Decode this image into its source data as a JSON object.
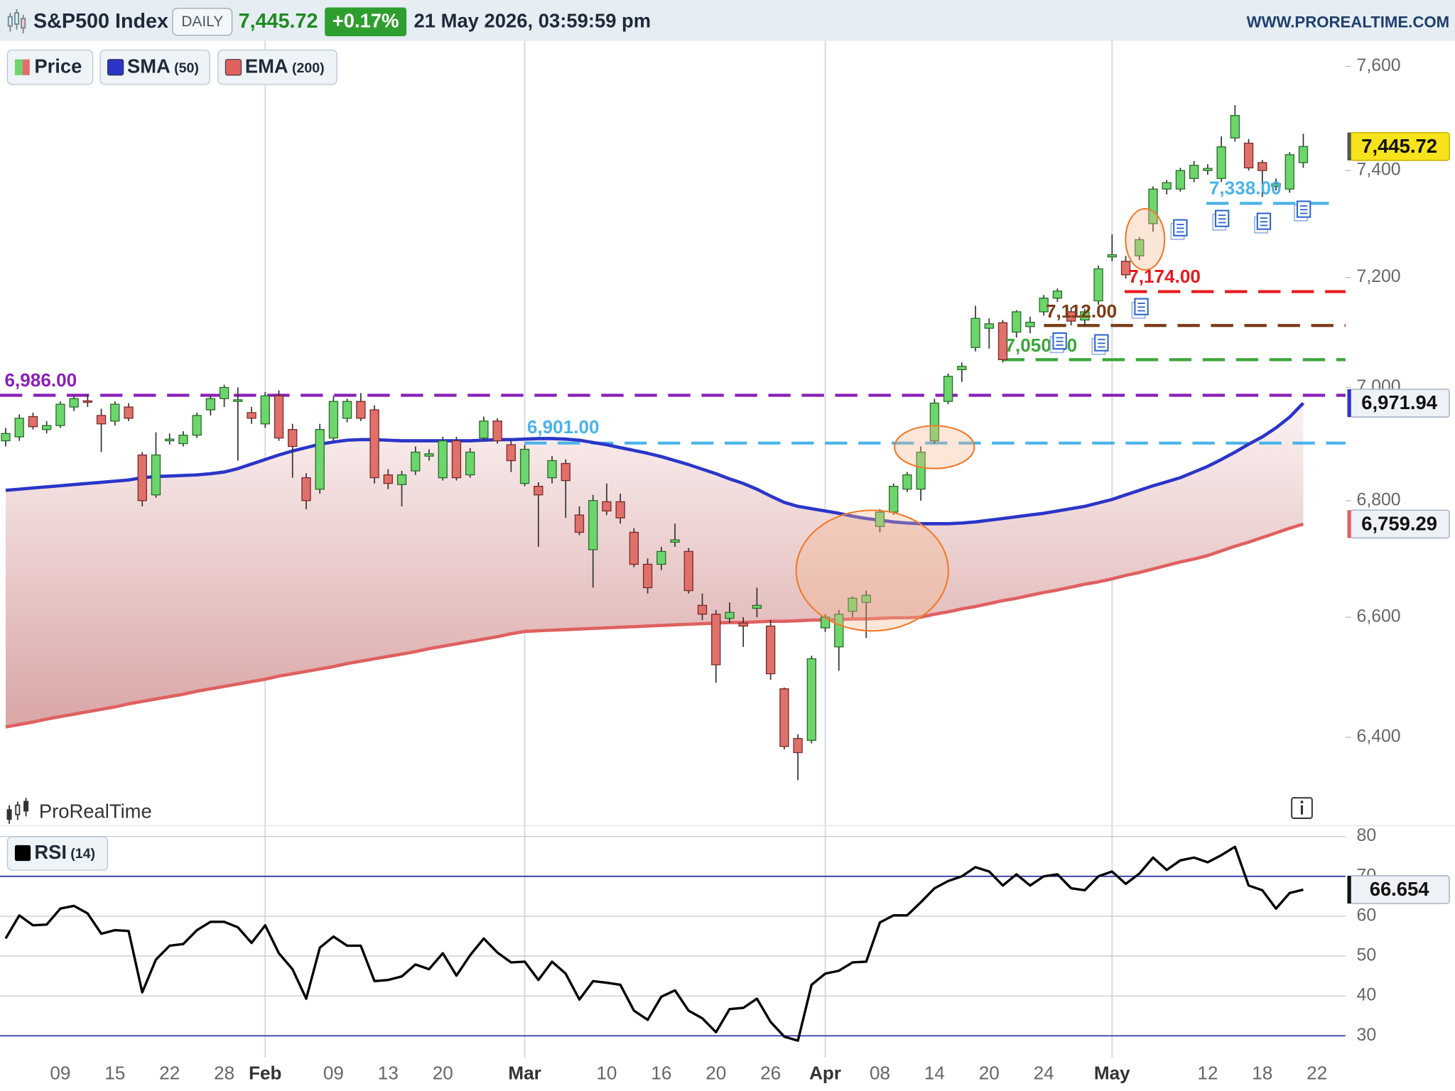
{
  "chart_data": {
    "type": "candlestick",
    "title": "S&P500 Index",
    "timeframe": "DAILY",
    "last_price_label": "7,445.72",
    "change_label": "+0.17%",
    "timestamp": "21 May 2026, 03:59:59 pm",
    "source": "WWW.PROREALTIME.COM",
    "brand": "ProRealTime",
    "legend": [
      {
        "name": "Price"
      },
      {
        "name": "SMA",
        "param": "(50)"
      },
      {
        "name": "EMA",
        "param": "(200)"
      }
    ],
    "log_scale": true,
    "ylim": [
      6300,
      7650
    ],
    "yticks": [
      {
        "value": 6400,
        "label": "6,400"
      },
      {
        "value": 6600,
        "label": "6,600"
      },
      {
        "value": 6800,
        "label": "6,800"
      },
      {
        "value": 7000,
        "label": "7,000"
      },
      {
        "value": 7200,
        "label": "7,200"
      },
      {
        "value": 7400,
        "label": "7,400"
      },
      {
        "value": 7600,
        "label": "7,600"
      }
    ],
    "categories": [
      null,
      null,
      null,
      null,
      "09",
      null,
      null,
      null,
      "15",
      null,
      null,
      null,
      "22",
      null,
      null,
      null,
      "28",
      null,
      null,
      "Feb",
      null,
      null,
      null,
      null,
      "09",
      null,
      null,
      null,
      "13",
      null,
      null,
      null,
      "20",
      null,
      null,
      null,
      null,
      null,
      "Mar",
      null,
      null,
      null,
      null,
      null,
      "10",
      null,
      null,
      null,
      "16",
      null,
      null,
      null,
      "20",
      null,
      null,
      null,
      "26",
      null,
      null,
      null,
      "Apr",
      null,
      null,
      null,
      "08",
      null,
      null,
      null,
      "14",
      null,
      null,
      null,
      "20",
      null,
      null,
      null,
      "24",
      null,
      null,
      null,
      null,
      "May",
      null,
      null,
      null,
      null,
      null,
      null,
      "12",
      null,
      null,
      null,
      "18",
      null,
      null,
      null,
      "22"
    ],
    "up_color": "#6cd66c",
    "down_color": "#e0706a",
    "open": [
      6905,
      6912,
      6948,
      6925,
      6932,
      6965,
      6976,
      6950,
      6940,
      6965,
      6880,
      6810,
      6905,
      6900,
      6915,
      6960,
      6980,
      6975,
      6955,
      6935,
      6985,
      6925,
      6840,
      6820,
      6910,
      6945,
      6975,
      6960,
      6845,
      6828,
      6852,
      6878,
      6840,
      6905,
      6845,
      6910,
      6940,
      6898,
      6830,
      6825,
      6840,
      6865,
      6775,
      6715,
      6798,
      6798,
      6745,
      6690,
      6690,
      6728,
      6712,
      6620,
      6605,
      6598,
      6590,
      6615,
      6585,
      6480,
      6398,
      6395,
      6582,
      6550,
      6610,
      6625,
      6755,
      6780,
      6820,
      6820,
      6905,
      6975,
      7032,
      7072,
      7107,
      7117,
      7100,
      7110,
      7137,
      7162,
      7137,
      7122,
      7157,
      7238,
      7230,
      7240,
      7300,
      7365,
      7365,
      7385,
      7400,
      7385,
      7462,
      7452,
      7415,
      7370,
      7365,
      7415,
      null
    ],
    "high": [
      6928,
      6952,
      6955,
      6940,
      6975,
      6985,
      6988,
      6962,
      6975,
      6972,
      6885,
      6920,
      6918,
      6922,
      6955,
      6985,
      7005,
      7000,
      6965,
      6992,
      6995,
      6935,
      6848,
      6935,
      6985,
      6980,
      6990,
      6968,
      6855,
      6852,
      6895,
      6890,
      6912,
      6912,
      6892,
      6948,
      6945,
      6905,
      6898,
      6832,
      6878,
      6872,
      6790,
      6810,
      6830,
      6812,
      6752,
      6700,
      6720,
      6760,
      6718,
      6640,
      6612,
      6625,
      6600,
      6650,
      6595,
      6482,
      6405,
      6535,
      6605,
      6612,
      6635,
      6645,
      6785,
      6830,
      6850,
      6895,
      6980,
      7025,
      7045,
      7148,
      7125,
      7122,
      7140,
      7128,
      7168,
      7180,
      7145,
      7142,
      7222,
      7280,
      7240,
      7275,
      7370,
      7382,
      7405,
      7418,
      7412,
      7465,
      7525,
      7460,
      7420,
      7385,
      7435,
      7470,
      null
    ],
    "low": [
      6895,
      6905,
      6925,
      6918,
      6928,
      6958,
      6965,
      6885,
      6932,
      6940,
      6790,
      6805,
      6898,
      6895,
      6910,
      6950,
      6965,
      6870,
      6935,
      6928,
      6905,
      6840,
      6785,
      6812,
      6905,
      6938,
      6940,
      6830,
      6820,
      6790,
      6845,
      6870,
      6835,
      6835,
      6840,
      6905,
      6900,
      6850,
      6825,
      6720,
      6830,
      6770,
      6740,
      6650,
      6775,
      6760,
      6685,
      6640,
      6680,
      6720,
      6640,
      6595,
      6490,
      6590,
      6550,
      6600,
      6495,
      6380,
      6330,
      6390,
      6575,
      6510,
      6600,
      6565,
      6745,
      6775,
      6815,
      6800,
      6900,
      6970,
      7010,
      7065,
      7070,
      7045,
      7090,
      7098,
      7130,
      7155,
      7112,
      7110,
      7150,
      7230,
      7198,
      7232,
      7285,
      7355,
      7360,
      7378,
      7392,
      7378,
      7455,
      7400,
      7350,
      7362,
      7358,
      7405,
      null
    ],
    "close": [
      6918,
      6945,
      6930,
      6932,
      6970,
      6980,
      6975,
      6935,
      6970,
      6945,
      6800,
      6880,
      6908,
      6915,
      6950,
      6980,
      7000,
      6978,
      6945,
      6985,
      6910,
      6895,
      6800,
      6925,
      6975,
      6975,
      6945,
      6840,
      6830,
      6845,
      6885,
      6882,
      6905,
      6840,
      6885,
      6940,
      6905,
      6870,
      6890,
      6810,
      6870,
      6835,
      6745,
      6800,
      6782,
      6770,
      6690,
      6650,
      6712,
      6732,
      6645,
      6605,
      6520,
      6608,
      6585,
      6620,
      6505,
      6385,
      6375,
      6530,
      6600,
      6605,
      6632,
      6637,
      6780,
      6825,
      6845,
      6885,
      6972,
      7020,
      7038,
      7125,
      7115,
      7050,
      7137,
      7118,
      7162,
      7175,
      7120,
      7137,
      7216,
      7242,
      7205,
      7270,
      7365,
      7377,
      7400,
      7410,
      7404,
      7445,
      7505,
      7405,
      7400,
      7375,
      7430,
      7445.72,
      null
    ],
    "indicators": [
      {
        "name": "SMA",
        "param": "(50)",
        "color": "#2b35c8",
        "last_label": "6,971.94",
        "values": [
          6818,
          6820,
          6822,
          6824,
          6826,
          6828,
          6830,
          6832,
          6834,
          6836,
          6840,
          6842,
          6843,
          6844,
          6845,
          6847,
          6850,
          6856,
          6864,
          6872,
          6880,
          6887,
          6893,
          6899,
          6903,
          6906,
          6907,
          6907,
          6906,
          6905,
          6905,
          6905,
          6905,
          6905,
          6905,
          6906,
          6907,
          6907,
          6908,
          6909,
          6909,
          6908,
          6906,
          6902,
          6898,
          6893,
          6888,
          6883,
          6877,
          6870,
          6863,
          6855,
          6847,
          6838,
          6830,
          6820,
          6808,
          6797,
          6790,
          6786,
          6782,
          6778,
          6773,
          6769,
          6766,
          6763,
          6761,
          6760,
          6760,
          6760,
          6761,
          6763,
          6766,
          6769,
          6772,
          6775,
          6778,
          6782,
          6786,
          6790,
          6796,
          6802,
          6810,
          6818,
          6826,
          6833,
          6840,
          6850,
          6860,
          6872,
          6885,
          6899,
          6912,
          6928,
          6947,
          6971.94,
          null
        ]
      },
      {
        "name": "EMA",
        "param": "(200)",
        "color": "#e06060",
        "last_label": "6,759.29",
        "values": [
          6417,
          6421,
          6425,
          6430,
          6434,
          6438,
          6442,
          6446,
          6450,
          6455,
          6459,
          6463,
          6467,
          6471,
          6476,
          6480,
          6484,
          6488,
          6492,
          6496,
          6501,
          6505,
          6509,
          6513,
          6517,
          6522,
          6526,
          6530,
          6534,
          6538,
          6542,
          6547,
          6551,
          6555,
          6559,
          6563,
          6567,
          6572,
          6576,
          6577,
          6578,
          6579,
          6580,
          6581,
          6582,
          6583,
          6584,
          6585,
          6586,
          6587,
          6588,
          6589,
          6590,
          6591,
          6591,
          6592,
          6593,
          6593,
          6594,
          6595,
          6595,
          6596,
          6597,
          6597,
          6598,
          6599,
          6599,
          6600,
          6605,
          6609,
          6614,
          6618,
          6623,
          6628,
          6632,
          6637,
          6642,
          6646,
          6651,
          6656,
          6660,
          6665,
          6671,
          6676,
          6682,
          6688,
          6694,
          6699,
          6705,
          6713,
          6721,
          6728,
          6736,
          6744,
          6752,
          6759.29,
          null
        ]
      }
    ],
    "levels": [
      {
        "value": 6986,
        "label": "6,986.00",
        "color": "#8a1fb5"
      },
      {
        "value": 6901,
        "label": "6,901.00",
        "color": "#4ab3ea"
      },
      {
        "value": 7050,
        "label": "7,050.00",
        "color": "#3aa63a"
      },
      {
        "value": 7112,
        "label": "7,112.00",
        "color": "#7a3b14"
      },
      {
        "value": 7174,
        "label": "7,174.00",
        "color": "#e8191e"
      },
      {
        "value": 7338,
        "label": "7,338.00",
        "color": "#4ab3ea"
      }
    ],
    "rsi": {
      "name": "RSI",
      "param": "(14)",
      "color": "#000000",
      "last_label": "66.654",
      "ylim": [
        25,
        82
      ],
      "yticks": [
        30,
        40,
        50,
        60,
        70,
        80
      ],
      "bands": [
        30,
        70
      ],
      "band_color": "#2b2b9e",
      "values": [
        54.4,
        60.2,
        57.7,
        57.9,
        61.9,
        62.6,
        60.7,
        55.6,
        56.5,
        56.3,
        40.9,
        49.1,
        52.6,
        53.0,
        56.5,
        58.6,
        58.6,
        57.2,
        53.3,
        57.7,
        50.7,
        46.7,
        39.3,
        52.1,
        54.9,
        52.6,
        52.6,
        43.7,
        44.0,
        44.9,
        47.9,
        46.7,
        50.7,
        45.1,
        50.2,
        54.4,
        50.9,
        48.4,
        48.6,
        44.0,
        48.6,
        45.6,
        39.1,
        43.7,
        43.3,
        42.8,
        36.3,
        34.0,
        39.8,
        41.4,
        36.3,
        34.4,
        30.9,
        36.7,
        37.0,
        39.3,
        33.5,
        29.8,
        28.8,
        42.8,
        45.6,
        46.3,
        48.4,
        48.6,
        58.4,
        60.2,
        60.2,
        63.5,
        67.0,
        68.8,
        70.0,
        72.3,
        71.2,
        67.7,
        70.5,
        67.7,
        70.0,
        70.5,
        67.0,
        66.5,
        70.0,
        71.2,
        68.1,
        70.7,
        74.7,
        71.6,
        74.0,
        74.7,
        73.5,
        75.3,
        77.4,
        67.7,
        66.5,
        61.9,
        65.8,
        66.654,
        null
      ]
    }
  }
}
